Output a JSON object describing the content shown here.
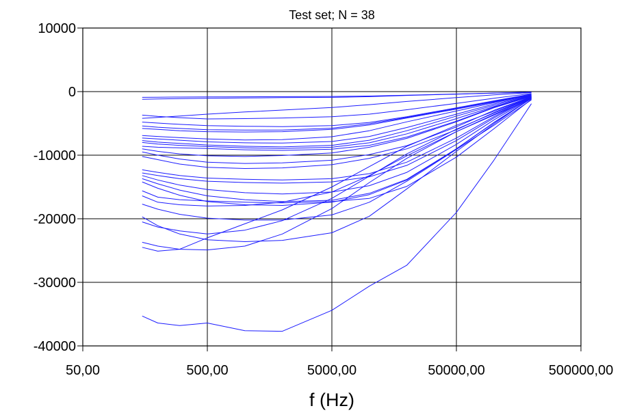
{
  "chart_data": {
    "type": "line",
    "title": "Test set; N = 38",
    "xlabel": "f  (Hz)",
    "ylabel": "",
    "xscale": "log",
    "xlim": [
      50,
      500000
    ],
    "ylim": [
      -40000,
      10000
    ],
    "x_ticks": [
      50,
      500,
      5000,
      50000,
      500000
    ],
    "x_tick_labels": [
      "50,00",
      "500,00",
      "5000,00",
      "50000,00",
      "500000,00"
    ],
    "y_ticks": [
      10000,
      0,
      -10000,
      -20000,
      -30000,
      -40000
    ],
    "y_tick_labels": [
      "10000",
      "0",
      "-10000",
      "-20000",
      "-30000",
      "-40000"
    ],
    "grid": true,
    "legend": "none",
    "series_color": "#1a1aff",
    "x": [
      150,
      200,
      300,
      500,
      1000,
      2000,
      5000,
      10000,
      20000,
      50000,
      100000,
      200000
    ],
    "series": [
      {
        "values": [
          -1200,
          -1150,
          -1100,
          -1050,
          -1000,
          -950,
          -900,
          -800,
          -600,
          -400,
          -250,
          -100
        ]
      },
      {
        "values": [
          -900,
          -880,
          -860,
          -840,
          -820,
          -800,
          -760,
          -700,
          -560,
          -380,
          -230,
          -80
        ]
      },
      {
        "values": [
          -4200,
          -4050,
          -3850,
          -3550,
          -3200,
          -2900,
          -2500,
          -2050,
          -1550,
          -950,
          -520,
          -150
        ]
      },
      {
        "values": [
          -3700,
          -3900,
          -4100,
          -4300,
          -4250,
          -4150,
          -3950,
          -3550,
          -2850,
          -1850,
          -1050,
          -300
        ]
      },
      {
        "values": [
          -4800,
          -4950,
          -5150,
          -5350,
          -5450,
          -5500,
          -5350,
          -4850,
          -3950,
          -2550,
          -1450,
          -400
        ]
      },
      {
        "values": [
          -5400,
          -5600,
          -5800,
          -6000,
          -6050,
          -6050,
          -5750,
          -5050,
          -4050,
          -2650,
          -1550,
          -450
        ]
      },
      {
        "values": [
          -5800,
          -5950,
          -6150,
          -6300,
          -6350,
          -6300,
          -5950,
          -5250,
          -4150,
          -2750,
          -1650,
          -500
        ]
      },
      {
        "values": [
          -6900,
          -7050,
          -7250,
          -7450,
          -7600,
          -7550,
          -7100,
          -6150,
          -4750,
          -3050,
          -1750,
          -550
        ]
      },
      {
        "values": [
          -7300,
          -7450,
          -7650,
          -7900,
          -8050,
          -8100,
          -7850,
          -7050,
          -5650,
          -3550,
          -1950,
          -600
        ]
      },
      {
        "values": [
          -7700,
          -7950,
          -8150,
          -8400,
          -8600,
          -8700,
          -8450,
          -7650,
          -6150,
          -3850,
          -2150,
          -650
        ]
      },
      {
        "values": [
          -8000,
          -8250,
          -8450,
          -8650,
          -8850,
          -8950,
          -8750,
          -8050,
          -6650,
          -4250,
          -2350,
          -700
        ]
      },
      {
        "values": [
          -8600,
          -8750,
          -8850,
          -8950,
          -9150,
          -9250,
          -9050,
          -8450,
          -7150,
          -4650,
          -2450,
          -700
        ]
      },
      {
        "values": [
          -9000,
          -9400,
          -9800,
          -10100,
          -10200,
          -10050,
          -9650,
          -8750,
          -7350,
          -4750,
          -2550,
          -750
        ]
      },
      {
        "values": [
          -9500,
          -10000,
          -10600,
          -11100,
          -11300,
          -11200,
          -10800,
          -9900,
          -8500,
          -5550,
          -2950,
          -800
        ]
      },
      {
        "values": [
          -10200,
          -10700,
          -11400,
          -11900,
          -12100,
          -12000,
          -11500,
          -10500,
          -9000,
          -6000,
          -3300,
          -850
        ]
      },
      {
        "values": [
          -12300,
          -12700,
          -13200,
          -13600,
          -13800,
          -13900,
          -13700,
          -12900,
          -11100,
          -7300,
          -3950,
          -900
        ]
      },
      {
        "values": [
          -12800,
          -13200,
          -13700,
          -14100,
          -14300,
          -14400,
          -14200,
          -13400,
          -11600,
          -7700,
          -4150,
          -950
        ]
      },
      {
        "values": [
          -13200,
          -13900,
          -14700,
          -15400,
          -15900,
          -16100,
          -15800,
          -14800,
          -12700,
          -8300,
          -4450,
          -1000
        ]
      },
      {
        "values": [
          -13700,
          -14500,
          -15500,
          -16400,
          -17000,
          -17300,
          -17100,
          -16000,
          -13800,
          -9000,
          -4850,
          -1050
        ]
      },
      {
        "values": [
          -14200,
          -15200,
          -16300,
          -17300,
          -17800,
          -17900,
          -17400,
          -16200,
          -13900,
          -9000,
          -4900,
          -1100
        ]
      },
      {
        "values": [
          -15600,
          -16600,
          -17000,
          -17200,
          -17400,
          -17500,
          -17300,
          -16800,
          -14900,
          -10300,
          -5850,
          -1200
        ]
      },
      {
        "values": [
          -16400,
          -17400,
          -17800,
          -18000,
          -17900,
          -17400,
          -15800,
          -13200,
          -10100,
          -6300,
          -3700,
          -1100
        ]
      },
      {
        "values": [
          -17700,
          -18500,
          -19300,
          -19900,
          -20200,
          -20200,
          -19400,
          -17400,
          -14100,
          -9100,
          -5300,
          -1300
        ]
      },
      {
        "values": [
          -20500,
          -21300,
          -21900,
          -22400,
          -21800,
          -20300,
          -16800,
          -13300,
          -9800,
          -5900,
          -3400,
          -900
        ]
      },
      {
        "values": [
          -23700,
          -24300,
          -24800,
          -24900,
          -24300,
          -22400,
          -18400,
          -14300,
          -10500,
          -6300,
          -3600,
          -900
        ]
      },
      {
        "values": [
          -24500,
          -25100,
          -24800,
          -23000,
          -20800,
          -18600,
          -15000,
          -11800,
          -8600,
          -5300,
          -3100,
          -800
        ]
      },
      {
        "values": [
          -19700,
          -21100,
          -22400,
          -23300,
          -23600,
          -23400,
          -22200,
          -19600,
          -15300,
          -9400,
          -5100,
          -1000
        ]
      },
      {
        "values": [
          -35300,
          -36400,
          -36800,
          -36400,
          -37600,
          -37700,
          -34400,
          -30600,
          -27300,
          -19000,
          -10800,
          -1900
        ]
      }
    ]
  }
}
